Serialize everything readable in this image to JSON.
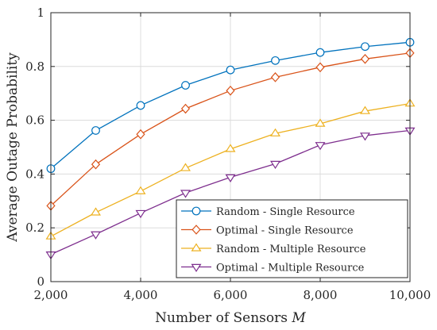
{
  "chart_data": {
    "type": "line",
    "xlabel": "Number of Sensors",
    "xlabel_var": "M",
    "ylabel": "Average Outage Probability",
    "xlim": [
      2000,
      10000
    ],
    "ylim": [
      0,
      1
    ],
    "grid": true,
    "legend_position": "bottom-right",
    "x": [
      2000,
      3000,
      4000,
      5000,
      6000,
      7000,
      8000,
      9000,
      10000
    ],
    "x_ticks": [
      2000,
      4000,
      6000,
      8000,
      10000
    ],
    "x_tick_labels": [
      "2,000",
      "4,000",
      "6,000",
      "8,000",
      "10,000"
    ],
    "y_ticks": [
      0,
      0.2,
      0.4,
      0.6,
      0.8,
      1
    ],
    "y_tick_labels": [
      "0",
      "0.2",
      "0.4",
      "0.6",
      "0.8",
      "1"
    ],
    "series": [
      {
        "name": "Random - Single Resource",
        "color": "#0072BD",
        "marker": "circle",
        "values": [
          0.42,
          0.562,
          0.655,
          0.73,
          0.787,
          0.822,
          0.852,
          0.874,
          0.89
        ]
      },
      {
        "name": "Optimal - Single Resource",
        "color": "#D95319",
        "marker": "diamond",
        "values": [
          0.282,
          0.436,
          0.548,
          0.643,
          0.71,
          0.76,
          0.797,
          0.828,
          0.85
        ]
      },
      {
        "name": "Random - Multiple Resource",
        "color": "#EDB120",
        "marker": "triangle-up",
        "values": [
          0.168,
          0.257,
          0.336,
          0.422,
          0.493,
          0.551,
          0.587,
          0.634,
          0.662
        ]
      },
      {
        "name": "Optimal - Multiple Resource",
        "color": "#7E2F8E",
        "marker": "triangle-down",
        "values": [
          0.101,
          0.176,
          0.255,
          0.33,
          0.388,
          0.438,
          0.508,
          0.543,
          0.562
        ]
      }
    ]
  }
}
